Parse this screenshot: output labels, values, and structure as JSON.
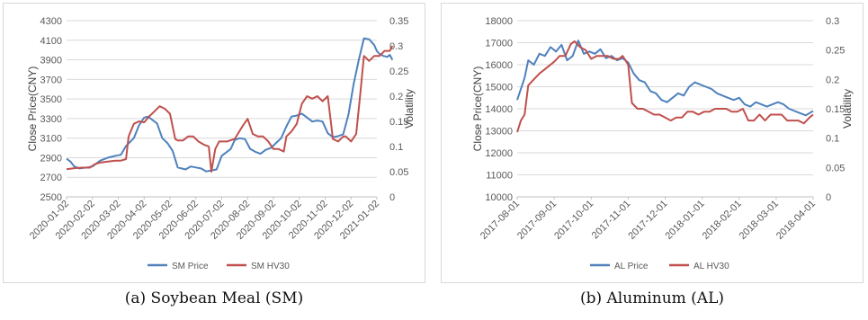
{
  "captions": {
    "a": "(a) Soybean Meal (SM)",
    "b": "(b) Aluminum (AL)"
  },
  "colors": {
    "price": "#4F81BD",
    "hv": "#C0504D",
    "grid": "#d9d9d9",
    "axis": "#bfbfbf"
  },
  "chart_data": [
    {
      "type": "line",
      "id": "sm",
      "ylabel": "Close Price(CNY)",
      "y2label": "Volatility",
      "ylim": [
        2500,
        4300
      ],
      "yticks": [
        2500,
        2700,
        2900,
        3100,
        3300,
        3500,
        3700,
        3900,
        4100,
        4300
      ],
      "y2lim": [
        0,
        0.35
      ],
      "y2ticks": [
        "0",
        "0.05",
        "0.1",
        "0.15",
        "0.2",
        "0.25",
        "0.3",
        "0.35"
      ],
      "xlabels": [
        "2020-01-02",
        "2020-02-02",
        "2020-03-02",
        "2020-04-02",
        "2020-05-02",
        "2020-06-02",
        "2020-07-02",
        "2020-08-02",
        "2020-09-02",
        "2020-10-02",
        "2020-11-02",
        "2020-12-02",
        "2021-01-02"
      ],
      "grid": true,
      "legend": "bottom",
      "series": [
        {
          "name": "SM Price",
          "axis": "left",
          "x": [
            0,
            0.15,
            0.3,
            0.5,
            0.8,
            1.0,
            1.3,
            1.6,
            1.9,
            2.1,
            2.3,
            2.6,
            2.8,
            3.0,
            3.15,
            3.3,
            3.5,
            3.7,
            3.9,
            4.1,
            4.3,
            4.45,
            4.6,
            4.8,
            5.0,
            5.2,
            5.4,
            5.6,
            5.8,
            6.0,
            6.2,
            6.35,
            6.5,
            6.7,
            6.9,
            7.1,
            7.3,
            7.5,
            7.7,
            7.9,
            8.1,
            8.3,
            8.5,
            8.7,
            8.9,
            9.1,
            9.3,
            9.5,
            9.7,
            9.9,
            10.1,
            10.3,
            10.5,
            10.7,
            10.9,
            11.1,
            11.3,
            11.5,
            11.7,
            11.9,
            12.0,
            12.1,
            12.25,
            12.4,
            12.5,
            12.6
          ],
          "y": [
            2890,
            2860,
            2810,
            2790,
            2800,
            2810,
            2870,
            2900,
            2920,
            2930,
            3020,
            3100,
            3230,
            3310,
            3320,
            3290,
            3250,
            3100,
            3050,
            2970,
            2800,
            2790,
            2780,
            2810,
            2800,
            2790,
            2760,
            2770,
            2780,
            2920,
            2960,
            2990,
            3080,
            3100,
            3090,
            2990,
            2960,
            2940,
            2980,
            3000,
            3050,
            3100,
            3220,
            3320,
            3330,
            3350,
            3310,
            3270,
            3280,
            3270,
            3150,
            3110,
            3120,
            3140,
            3340,
            3650,
            3900,
            4120,
            4110,
            4050,
            3990,
            3960,
            3940,
            3930,
            3950,
            3900
          ]
        },
        {
          "name": "SM HV30",
          "axis": "right",
          "x": [
            0,
            0.3,
            0.6,
            0.9,
            1.1,
            1.3,
            1.6,
            1.9,
            2.1,
            2.3,
            2.4,
            2.6,
            2.8,
            3.0,
            3.2,
            3.4,
            3.6,
            3.8,
            4.0,
            4.2,
            4.3,
            4.5,
            4.7,
            4.9,
            5.1,
            5.3,
            5.5,
            5.6,
            5.75,
            5.9,
            6.2,
            6.5,
            6.8,
            7.0,
            7.2,
            7.4,
            7.6,
            7.8,
            8.0,
            8.2,
            8.4,
            8.5,
            8.7,
            8.9,
            9.1,
            9.3,
            9.5,
            9.7,
            9.9,
            10.1,
            10.3,
            10.5,
            10.7,
            10.8,
            11.0,
            11.2,
            11.35,
            11.5,
            11.7,
            11.9,
            12.1,
            12.3,
            12.5,
            12.6
          ],
          "y": [
            0.055,
            0.057,
            0.058,
            0.058,
            0.065,
            0.068,
            0.07,
            0.072,
            0.072,
            0.075,
            0.12,
            0.145,
            0.15,
            0.148,
            0.16,
            0.17,
            0.18,
            0.175,
            0.165,
            0.115,
            0.112,
            0.112,
            0.12,
            0.12,
            0.11,
            0.104,
            0.1,
            0.05,
            0.095,
            0.11,
            0.11,
            0.115,
            0.14,
            0.155,
            0.125,
            0.12,
            0.12,
            0.11,
            0.095,
            0.095,
            0.09,
            0.12,
            0.13,
            0.145,
            0.185,
            0.2,
            0.195,
            0.2,
            0.19,
            0.2,
            0.115,
            0.11,
            0.12,
            0.12,
            0.11,
            0.125,
            0.2,
            0.28,
            0.27,
            0.28,
            0.28,
            0.29,
            0.29,
            0.3
          ]
        }
      ]
    },
    {
      "type": "line",
      "id": "al",
      "ylabel": "Close Price(CNY)",
      "y2label": "Volatility",
      "ylim": [
        10000,
        18000
      ],
      "yticks": [
        10000,
        11000,
        12000,
        13000,
        14000,
        15000,
        16000,
        17000,
        18000
      ],
      "y2lim": [
        0,
        0.3
      ],
      "y2ticks": [
        "0",
        "0.05",
        "0.1",
        "0.15",
        "0.2",
        "0.25",
        "0.3"
      ],
      "xlabels": [
        "2017-08-01",
        "2017-09-01",
        "2017-10-01",
        "2017-11-01",
        "2017-12-01",
        "2018-01-01",
        "2018-02-01",
        "2018-03-01",
        "2018-04-01"
      ],
      "grid": true,
      "legend": "bottom",
      "series": [
        {
          "name": "AL Price",
          "axis": "left",
          "x": [
            0,
            0.1,
            0.2,
            0.3,
            0.45,
            0.6,
            0.75,
            0.9,
            1.05,
            1.2,
            1.35,
            1.5,
            1.65,
            1.8,
            1.95,
            2.1,
            2.25,
            2.4,
            2.55,
            2.7,
            2.85,
            3.0,
            3.15,
            3.3,
            3.45,
            3.6,
            3.75,
            3.9,
            4.05,
            4.2,
            4.35,
            4.5,
            4.65,
            4.8,
            4.95,
            5.1,
            5.25,
            5.4,
            5.55,
            5.7,
            5.85,
            6.0,
            6.15,
            6.3,
            6.45,
            6.6,
            6.75,
            6.9,
            7.05,
            7.2,
            7.35,
            7.5,
            7.65,
            7.8,
            7.95,
            8.0
          ],
          "y": [
            14400,
            14900,
            15400,
            16200,
            16000,
            16500,
            16400,
            16800,
            16600,
            16900,
            16200,
            16400,
            17100,
            16500,
            16600,
            16500,
            16700,
            16300,
            16400,
            16200,
            16300,
            16100,
            15600,
            15300,
            15200,
            14800,
            14700,
            14400,
            14300,
            14500,
            14700,
            14600,
            15000,
            15200,
            15100,
            15000,
            14900,
            14700,
            14600,
            14500,
            14400,
            14500,
            14200,
            14100,
            14300,
            14200,
            14100,
            14200,
            14300,
            14200,
            14000,
            13900,
            13800,
            13700,
            13850,
            13900
          ]
        },
        {
          "name": "AL HV30",
          "axis": "right",
          "x": [
            0,
            0.1,
            0.2,
            0.3,
            0.45,
            0.6,
            0.8,
            1.0,
            1.15,
            1.3,
            1.45,
            1.55,
            1.7,
            1.85,
            2.0,
            2.15,
            2.3,
            2.45,
            2.6,
            2.75,
            2.85,
            3.0,
            3.1,
            3.25,
            3.4,
            3.55,
            3.7,
            3.85,
            4.0,
            4.15,
            4.3,
            4.45,
            4.6,
            4.75,
            4.9,
            5.05,
            5.2,
            5.35,
            5.5,
            5.65,
            5.8,
            5.95,
            6.1,
            6.25,
            6.4,
            6.55,
            6.7,
            6.85,
            7.0,
            7.15,
            7.3,
            7.45,
            7.6,
            7.75,
            7.9,
            8.0
          ],
          "y": [
            0.11,
            0.13,
            0.14,
            0.19,
            0.2,
            0.21,
            0.22,
            0.23,
            0.24,
            0.24,
            0.26,
            0.265,
            0.255,
            0.25,
            0.235,
            0.24,
            0.24,
            0.24,
            0.235,
            0.235,
            0.24,
            0.225,
            0.16,
            0.15,
            0.15,
            0.145,
            0.14,
            0.14,
            0.135,
            0.13,
            0.135,
            0.135,
            0.145,
            0.145,
            0.14,
            0.145,
            0.145,
            0.15,
            0.15,
            0.15,
            0.145,
            0.145,
            0.15,
            0.13,
            0.13,
            0.14,
            0.13,
            0.14,
            0.14,
            0.14,
            0.13,
            0.13,
            0.13,
            0.125,
            0.135,
            0.14
          ]
        }
      ]
    }
  ]
}
